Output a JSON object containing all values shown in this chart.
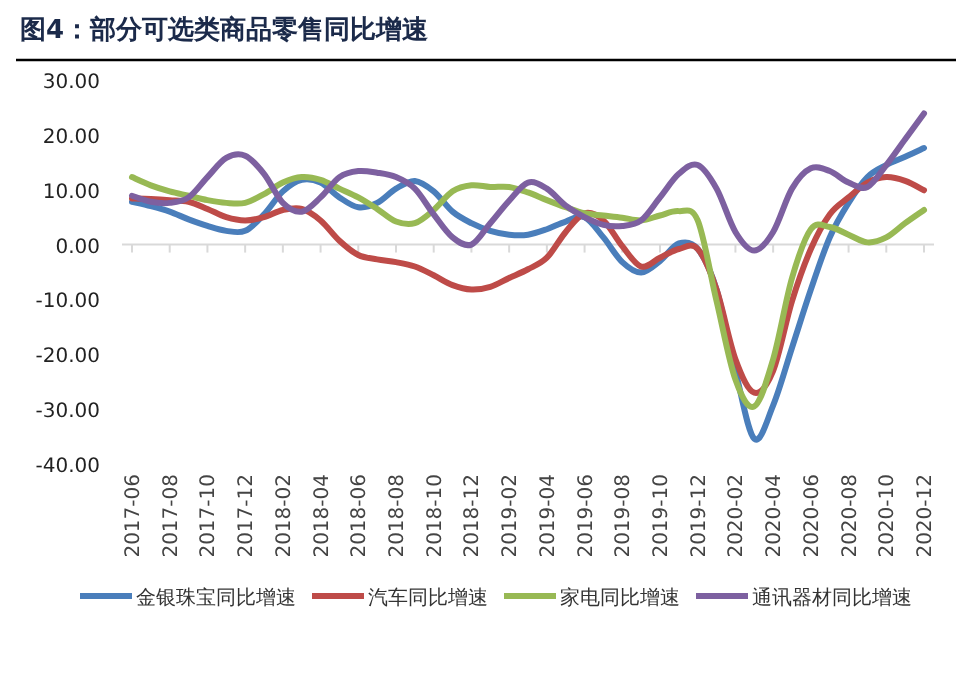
{
  "chart_data": {
    "type": "line",
    "title": "图4：部分可选类商品零售同比增速",
    "categories": [
      "2017-06",
      null,
      "2017-08",
      null,
      "2017-10",
      null,
      "2017-12",
      null,
      "2018-02",
      null,
      "2018-04",
      null,
      "2018-06",
      null,
      "2018-08",
      null,
      "2018-10",
      null,
      "2018-12",
      null,
      "2019-02",
      null,
      "2019-04",
      null,
      "2019-06",
      null,
      "2019-08",
      null,
      "2019-10",
      null,
      "2019-12",
      null,
      "2020-02",
      null,
      "2020-04",
      null,
      "2020-06",
      null,
      "2020-08",
      null,
      "2020-10",
      null,
      "2020-12"
    ],
    "series": [
      {
        "name": "金银珠宝同比增速",
        "color": "#4a7ebb",
        "values": [
          7.8,
          7.0,
          6.0,
          4.6,
          3.4,
          2.5,
          2.5,
          5.5,
          9.7,
          11.8,
          11.3,
          8.6,
          6.8,
          7.6,
          10.2,
          11.6,
          9.7,
          6.0,
          3.9,
          2.5,
          1.8,
          1.8,
          2.8,
          4.2,
          5.0,
          1.3,
          -3.2,
          -5.1,
          -3.0,
          0.2,
          -0.8,
          -8.2,
          -23,
          -35.4,
          -29.3,
          -18.8,
          -8.2,
          1.3,
          7.6,
          12.3,
          14.5,
          16,
          17.6
        ]
      },
      {
        "name": "汽车同比增速",
        "color": "#be4b48",
        "values": [
          8.4,
          8.3,
          8.1,
          7.8,
          6.5,
          5.0,
          4.4,
          5.0,
          6.3,
          6.5,
          4.4,
          0.7,
          -1.9,
          -2.7,
          -3.2,
          -4,
          -5.6,
          -7.4,
          -8.2,
          -7.7,
          -6.1,
          -4.5,
          -2.4,
          2.3,
          5.7,
          4.4,
          -0.3,
          -4,
          -2.4,
          -0.8,
          -0.8,
          -8.2,
          -20.9,
          -27,
          -23,
          -10.3,
          -0.8,
          5.5,
          8.6,
          11.3,
          12.3,
          11.6,
          9.9
        ]
      },
      {
        "name": "家电同比增速",
        "color": "#98b954",
        "values": [
          12.3,
          10.8,
          9.7,
          8.9,
          8.1,
          7.6,
          7.6,
          9.2,
          11.3,
          12.3,
          11.8,
          10.2,
          8.6,
          6.5,
          4.2,
          3.9,
          6.3,
          9.7,
          10.8,
          10.5,
          10.5,
          9.5,
          8.1,
          6.8,
          5.7,
          5.3,
          4.9,
          4.4,
          5.3,
          6.1,
          4.4,
          -10.3,
          -24.6,
          -29.5,
          -20.9,
          -6.1,
          2.8,
          3.2,
          1.8,
          0.4,
          1.3,
          3.9,
          6.3
        ]
      },
      {
        "name": "通讯器材同比增速",
        "color": "#7d60a0",
        "values": [
          8.9,
          7.8,
          7.6,
          8.6,
          12.3,
          15.8,
          16.2,
          12.9,
          7.6,
          6.0,
          8.6,
          12.3,
          13.4,
          13.1,
          12.3,
          10.2,
          5.5,
          1.3,
          0,
          3.9,
          8,
          11.3,
          10.2,
          7.1,
          5.0,
          3.6,
          3.4,
          4.4,
          8.6,
          12.9,
          14.5,
          10.2,
          2.3,
          -1.1,
          2.3,
          10.2,
          13.9,
          13.4,
          11.3,
          10.5,
          14.5,
          19.2,
          23.9
        ]
      }
    ],
    "ylim": [
      -40,
      30
    ],
    "yticks": [
      {
        "value": -40,
        "label": "-40.00"
      },
      {
        "value": -30,
        "label": "-30.00"
      },
      {
        "value": -20,
        "label": "-20.00"
      },
      {
        "value": -10,
        "label": "-10.00"
      },
      {
        "value": 0,
        "label": "0.00"
      },
      {
        "value": 10,
        "label": "10.00"
      },
      {
        "value": 20,
        "label": "20.00"
      },
      {
        "value": 30,
        "label": "30.00"
      }
    ],
    "legend": "bottom"
  }
}
